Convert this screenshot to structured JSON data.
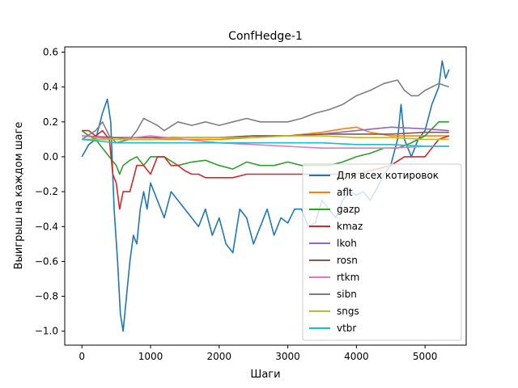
{
  "chart_data": {
    "type": "line",
    "title": "ConfHedge-1",
    "xlabel": "Шаги",
    "ylabel": "Выигрыш на каждом шаге",
    "xlim": [
      -250,
      5600
    ],
    "ylim": [
      -1.08,
      0.63
    ],
    "xticks": [
      0,
      1000,
      2000,
      3000,
      4000,
      5000
    ],
    "yticks": [
      -1.0,
      -0.8,
      -0.6,
      -0.4,
      -0.2,
      0.0,
      0.2,
      0.4,
      0.6
    ],
    "xtick_labels": [
      "0",
      "1000",
      "2000",
      "3000",
      "4000",
      "5000"
    ],
    "ytick_labels": [
      "−1.0",
      "−0.8",
      "−0.6",
      "−0.4",
      "−0.2",
      "0.0",
      "0.2",
      "0.4",
      "0.6"
    ],
    "grid": false,
    "legend_position": "lower-right",
    "series": [
      {
        "name": "Для всех котировок",
        "color": "#1f77b4",
        "points": [
          [
            0,
            0.0
          ],
          [
            100,
            0.07
          ],
          [
            200,
            0.1
          ],
          [
            300,
            0.25
          ],
          [
            370,
            0.33
          ],
          [
            420,
            0.2
          ],
          [
            470,
            -0.3
          ],
          [
            520,
            -0.6
          ],
          [
            560,
            -0.9
          ],
          [
            600,
            -1.0
          ],
          [
            650,
            -0.8
          ],
          [
            700,
            -0.6
          ],
          [
            750,
            -0.45
          ],
          [
            800,
            -0.5
          ],
          [
            850,
            -0.3
          ],
          [
            900,
            -0.2
          ],
          [
            950,
            -0.3
          ],
          [
            1000,
            -0.15
          ],
          [
            1050,
            -0.2
          ],
          [
            1100,
            -0.25
          ],
          [
            1150,
            -0.3
          ],
          [
            1200,
            -0.35
          ],
          [
            1300,
            -0.2
          ],
          [
            1400,
            -0.25
          ],
          [
            1500,
            -0.3
          ],
          [
            1600,
            -0.35
          ],
          [
            1700,
            -0.4
          ],
          [
            1800,
            -0.3
          ],
          [
            1900,
            -0.45
          ],
          [
            2000,
            -0.35
          ],
          [
            2100,
            -0.5
          ],
          [
            2200,
            -0.55
          ],
          [
            2300,
            -0.3
          ],
          [
            2400,
            -0.35
          ],
          [
            2500,
            -0.5
          ],
          [
            2600,
            -0.4
          ],
          [
            2700,
            -0.3
          ],
          [
            2800,
            -0.45
          ],
          [
            2900,
            -0.35
          ],
          [
            3000,
            -0.38
          ],
          [
            3100,
            -0.3
          ],
          [
            3200,
            -0.3
          ],
          [
            3300,
            -0.4
          ],
          [
            3400,
            -0.38
          ],
          [
            3500,
            -0.25
          ],
          [
            3600,
            -0.3
          ],
          [
            3700,
            -0.35
          ],
          [
            3800,
            -0.25
          ],
          [
            3900,
            -0.2
          ],
          [
            4000,
            -0.22
          ],
          [
            4100,
            -0.2
          ],
          [
            4200,
            -0.25
          ],
          [
            4300,
            -0.18
          ],
          [
            4400,
            -0.1
          ],
          [
            4500,
            -0.05
          ],
          [
            4600,
            0.1
          ],
          [
            4650,
            0.3
          ],
          [
            4700,
            0.1
          ],
          [
            4800,
            0.0
          ],
          [
            4900,
            0.1
          ],
          [
            5000,
            0.15
          ],
          [
            5100,
            0.3
          ],
          [
            5200,
            0.4
          ],
          [
            5250,
            0.55
          ],
          [
            5300,
            0.45
          ],
          [
            5350,
            0.5
          ]
        ]
      },
      {
        "name": "aflt",
        "color": "#ff7f0e",
        "points": [
          [
            0,
            0.1
          ],
          [
            500,
            0.1
          ],
          [
            1000,
            0.1
          ],
          [
            1500,
            0.1
          ],
          [
            2000,
            0.1
          ],
          [
            2500,
            0.11
          ],
          [
            3000,
            0.12
          ],
          [
            3500,
            0.14
          ],
          [
            3800,
            0.16
          ],
          [
            4000,
            0.17
          ],
          [
            4200,
            0.14
          ],
          [
            4500,
            0.12
          ],
          [
            5000,
            0.12
          ],
          [
            5350,
            0.12
          ]
        ]
      },
      {
        "name": "gazp",
        "color": "#2ca02c",
        "points": [
          [
            0,
            0.15
          ],
          [
            100,
            0.12
          ],
          [
            200,
            0.1
          ],
          [
            300,
            0.05
          ],
          [
            400,
            0.0
          ],
          [
            500,
            -0.05
          ],
          [
            550,
            -0.1
          ],
          [
            600,
            -0.05
          ],
          [
            700,
            -0.02
          ],
          [
            800,
            0.0
          ],
          [
            900,
            -0.05
          ],
          [
            1000,
            0.0
          ],
          [
            1200,
            0.0
          ],
          [
            1400,
            -0.05
          ],
          [
            1600,
            -0.03
          ],
          [
            1800,
            -0.02
          ],
          [
            2000,
            -0.05
          ],
          [
            2200,
            -0.07
          ],
          [
            2400,
            -0.03
          ],
          [
            2600,
            -0.05
          ],
          [
            2800,
            -0.05
          ],
          [
            3000,
            -0.03
          ],
          [
            3200,
            -0.05
          ],
          [
            3400,
            -0.05
          ],
          [
            3600,
            -0.05
          ],
          [
            3800,
            -0.03
          ],
          [
            4000,
            0.0
          ],
          [
            4200,
            0.02
          ],
          [
            4400,
            0.05
          ],
          [
            4600,
            0.05
          ],
          [
            4800,
            0.08
          ],
          [
            5000,
            0.12
          ],
          [
            5200,
            0.2
          ],
          [
            5300,
            0.2
          ],
          [
            5350,
            0.2
          ]
        ]
      },
      {
        "name": "kmaz",
        "color": "#d62728",
        "points": [
          [
            0,
            0.15
          ],
          [
            100,
            0.15
          ],
          [
            200,
            0.12
          ],
          [
            300,
            0.15
          ],
          [
            400,
            0.1
          ],
          [
            450,
            -0.1
          ],
          [
            500,
            -0.15
          ],
          [
            550,
            -0.3
          ],
          [
            600,
            -0.2
          ],
          [
            700,
            -0.2
          ],
          [
            800,
            -0.05
          ],
          [
            900,
            -0.05
          ],
          [
            1000,
            -0.1
          ],
          [
            1100,
            0.0
          ],
          [
            1200,
            0.0
          ],
          [
            1300,
            -0.05
          ],
          [
            1400,
            -0.05
          ],
          [
            1500,
            -0.08
          ],
          [
            1600,
            -0.1
          ],
          [
            1700,
            -0.1
          ],
          [
            1800,
            -0.12
          ],
          [
            2000,
            -0.12
          ],
          [
            2200,
            -0.12
          ],
          [
            2400,
            -0.1
          ],
          [
            2600,
            -0.1
          ],
          [
            2800,
            -0.1
          ],
          [
            3000,
            -0.1
          ],
          [
            3500,
            -0.1
          ],
          [
            4000,
            -0.1
          ],
          [
            4500,
            -0.05
          ],
          [
            4700,
            0.0
          ],
          [
            5000,
            0.0
          ],
          [
            5200,
            0.1
          ],
          [
            5350,
            0.12
          ]
        ]
      },
      {
        "name": "lkoh",
        "color": "#9467bd",
        "points": [
          [
            0,
            0.1
          ],
          [
            500,
            0.1
          ],
          [
            1000,
            0.1
          ],
          [
            1500,
            0.11
          ],
          [
            2000,
            0.11
          ],
          [
            2500,
            0.12
          ],
          [
            3000,
            0.12
          ],
          [
            3500,
            0.13
          ],
          [
            4000,
            0.15
          ],
          [
            4500,
            0.17
          ],
          [
            5000,
            0.16
          ],
          [
            5350,
            0.15
          ]
        ]
      },
      {
        "name": "rosn",
        "color": "#8c564b",
        "points": [
          [
            0,
            0.12
          ],
          [
            500,
            0.11
          ],
          [
            1000,
            0.11
          ],
          [
            1500,
            0.11
          ],
          [
            2000,
            0.11
          ],
          [
            2500,
            0.12
          ],
          [
            3000,
            0.12
          ],
          [
            3500,
            0.13
          ],
          [
            4000,
            0.13
          ],
          [
            4500,
            0.13
          ],
          [
            5000,
            0.14
          ],
          [
            5350,
            0.14
          ]
        ]
      },
      {
        "name": "rtkm",
        "color": "#e377c2",
        "points": [
          [
            0,
            0.12
          ],
          [
            500,
            0.1
          ],
          [
            1000,
            0.12
          ],
          [
            1500,
            0.1
          ],
          [
            2000,
            0.08
          ],
          [
            2500,
            0.07
          ],
          [
            3000,
            0.06
          ],
          [
            3500,
            0.05
          ],
          [
            4000,
            0.05
          ],
          [
            4500,
            0.05
          ],
          [
            5000,
            0.06
          ],
          [
            5350,
            0.06
          ]
        ]
      },
      {
        "name": "sibn",
        "color": "#7f7f7f",
        "points": [
          [
            0,
            0.1
          ],
          [
            200,
            0.15
          ],
          [
            300,
            0.2
          ],
          [
            400,
            0.12
          ],
          [
            500,
            0.08
          ],
          [
            700,
            0.1
          ],
          [
            800,
            0.15
          ],
          [
            900,
            0.22
          ],
          [
            1000,
            0.2
          ],
          [
            1100,
            0.18
          ],
          [
            1200,
            0.15
          ],
          [
            1400,
            0.2
          ],
          [
            1600,
            0.18
          ],
          [
            1800,
            0.2
          ],
          [
            2000,
            0.18
          ],
          [
            2200,
            0.2
          ],
          [
            2400,
            0.22
          ],
          [
            2600,
            0.2
          ],
          [
            2800,
            0.2
          ],
          [
            3000,
            0.2
          ],
          [
            3200,
            0.22
          ],
          [
            3400,
            0.25
          ],
          [
            3600,
            0.27
          ],
          [
            3800,
            0.3
          ],
          [
            4000,
            0.35
          ],
          [
            4200,
            0.38
          ],
          [
            4400,
            0.42
          ],
          [
            4600,
            0.44
          ],
          [
            4700,
            0.38
          ],
          [
            4800,
            0.35
          ],
          [
            4900,
            0.35
          ],
          [
            5000,
            0.38
          ],
          [
            5100,
            0.4
          ],
          [
            5200,
            0.42
          ],
          [
            5350,
            0.4
          ]
        ]
      },
      {
        "name": "sngs",
        "color": "#bcbd22",
        "points": [
          [
            0,
            0.1
          ],
          [
            500,
            0.1
          ],
          [
            1000,
            0.1
          ],
          [
            1500,
            0.11
          ],
          [
            2000,
            0.11
          ],
          [
            2500,
            0.11
          ],
          [
            3000,
            0.12
          ],
          [
            3500,
            0.12
          ],
          [
            4000,
            0.11
          ],
          [
            4500,
            0.11
          ],
          [
            5000,
            0.1
          ],
          [
            5350,
            0.1
          ]
        ]
      },
      {
        "name": "vtbr",
        "color": "#17becf",
        "points": [
          [
            0,
            0.1
          ],
          [
            500,
            0.08
          ],
          [
            1000,
            0.08
          ],
          [
            1500,
            0.08
          ],
          [
            2000,
            0.08
          ],
          [
            2500,
            0.08
          ],
          [
            3000,
            0.08
          ],
          [
            3500,
            0.08
          ],
          [
            4000,
            0.07
          ],
          [
            4500,
            0.07
          ],
          [
            5000,
            0.06
          ],
          [
            5350,
            0.06
          ]
        ]
      }
    ]
  }
}
